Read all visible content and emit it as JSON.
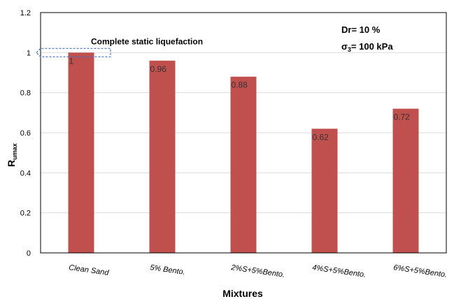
{
  "chart_data": {
    "type": "bar",
    "categories": [
      "Clean Sand",
      "5% Bento.",
      "2%S+5%Bento.",
      "4%S+5%Bento.",
      "6%S+5%Bento."
    ],
    "values": [
      1,
      0.96,
      0.88,
      0.62,
      0.72
    ],
    "data_labels": [
      "1",
      "0.96",
      "0.88",
      "0.62",
      "0.72"
    ],
    "xlabel": "Mixtures",
    "ylabel": {
      "main": "R",
      "sub": "umax"
    },
    "ylim": [
      0,
      1.2
    ],
    "yticks": [
      "0",
      "0.2",
      "0.4",
      "0.6",
      "0.8",
      "1",
      "1.2"
    ],
    "grid": true,
    "bar_color": "#c0504d",
    "annotation": "Complete static liquefaction",
    "annotation_color": "#4472c4",
    "info": {
      "line1": "Dr= 10 %",
      "line2_symbol": "σ",
      "line2_sub": "3",
      "line2_rest": "= 100 kPa"
    }
  }
}
